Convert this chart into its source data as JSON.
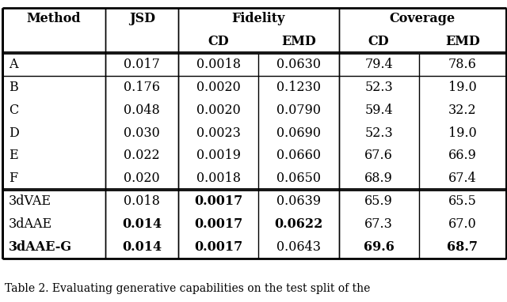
{
  "title": "Table 2. Evaluating generative capabilities on the test split of the",
  "rows": [
    {
      "method": "A",
      "jsd": "0.017",
      "fid_cd": "0.0018",
      "fid_emd": "0.0630",
      "cov_cd": "79.4",
      "cov_emd": "78.6",
      "bold": []
    },
    {
      "method": "B",
      "jsd": "0.176",
      "fid_cd": "0.0020",
      "fid_emd": "0.1230",
      "cov_cd": "52.3",
      "cov_emd": "19.0",
      "bold": []
    },
    {
      "method": "C",
      "jsd": "0.048",
      "fid_cd": "0.0020",
      "fid_emd": "0.0790",
      "cov_cd": "59.4",
      "cov_emd": "32.2",
      "bold": []
    },
    {
      "method": "D",
      "jsd": "0.030",
      "fid_cd": "0.0023",
      "fid_emd": "0.0690",
      "cov_cd": "52.3",
      "cov_emd": "19.0",
      "bold": []
    },
    {
      "method": "E",
      "jsd": "0.022",
      "fid_cd": "0.0019",
      "fid_emd": "0.0660",
      "cov_cd": "67.6",
      "cov_emd": "66.9",
      "bold": []
    },
    {
      "method": "F",
      "jsd": "0.020",
      "fid_cd": "0.0018",
      "fid_emd": "0.0650",
      "cov_cd": "68.9",
      "cov_emd": "67.4",
      "bold": []
    },
    {
      "method": "3dVAE",
      "jsd": "0.018",
      "fid_cd": "0.0017",
      "fid_emd": "0.0639",
      "cov_cd": "65.9",
      "cov_emd": "65.5",
      "bold": [
        "fid_cd"
      ]
    },
    {
      "method": "3dAAE",
      "jsd": "0.014",
      "fid_cd": "0.0017",
      "fid_emd": "0.0622",
      "cov_cd": "67.3",
      "cov_emd": "67.0",
      "bold": [
        "jsd",
        "fid_cd",
        "fid_emd"
      ]
    },
    {
      "method": "3dAAE-G",
      "jsd": "0.014",
      "fid_cd": "0.0017",
      "fid_emd": "0.0643",
      "cov_cd": "69.6",
      "cov_emd": "68.7",
      "bold": [
        "method",
        "jsd",
        "fid_cd",
        "cov_cd",
        "cov_emd"
      ]
    }
  ],
  "bg_color": "#ffffff",
  "text_color": "#000000",
  "font_size": 11.5,
  "caption_font_size": 10.0
}
